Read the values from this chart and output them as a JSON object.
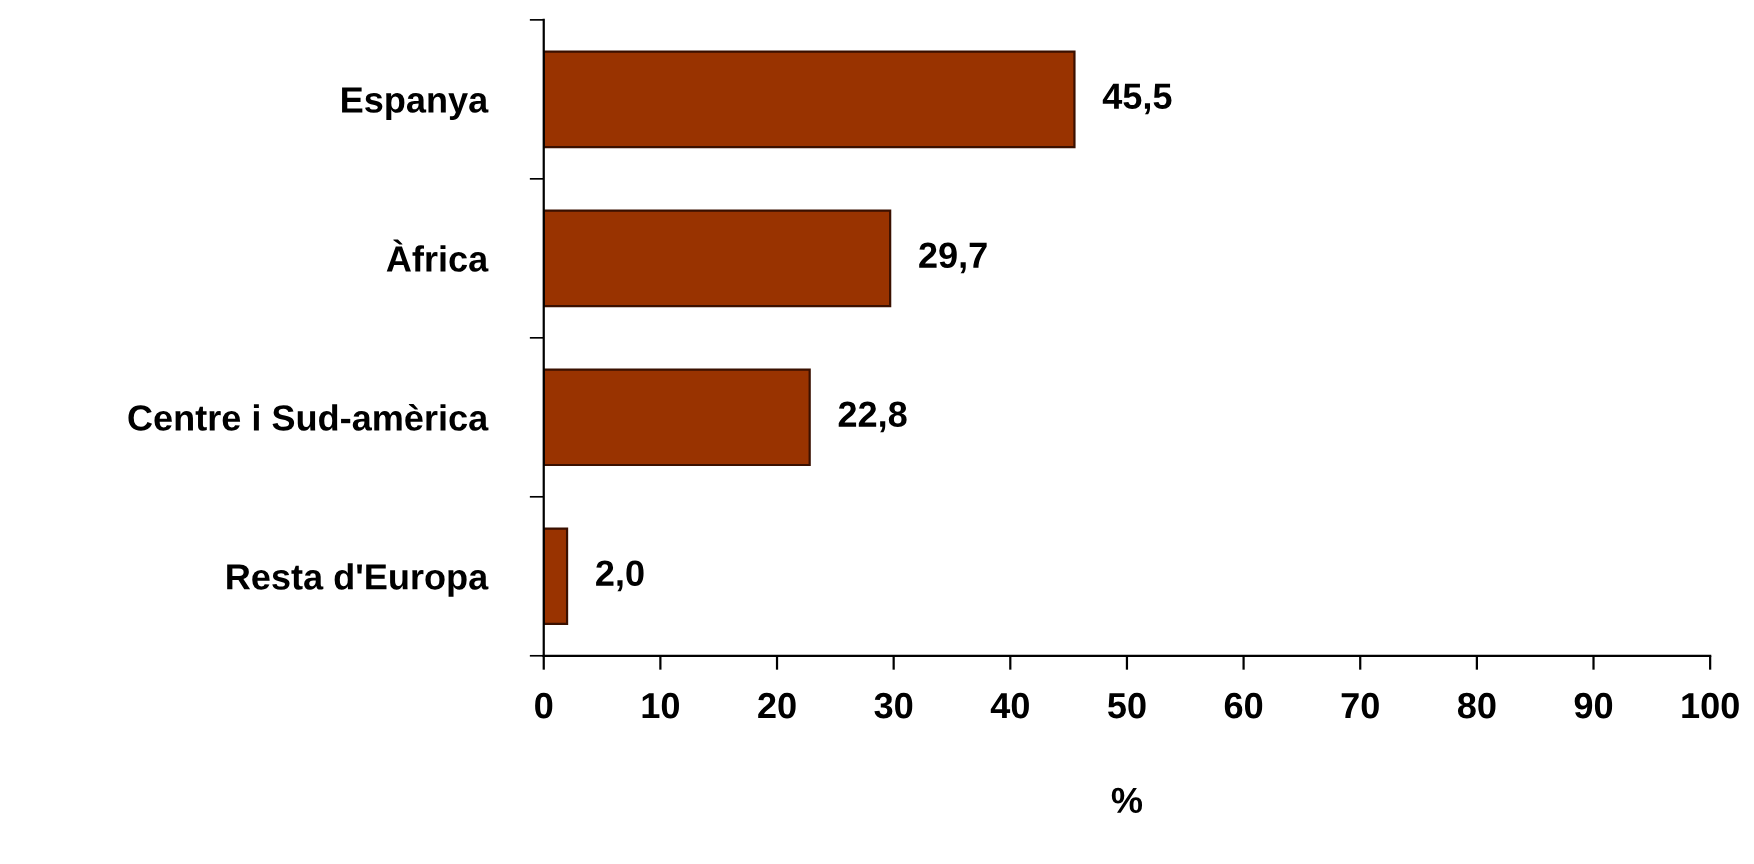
{
  "chart_data": {
    "type": "bar",
    "orientation": "horizontal",
    "categories": [
      "Espanya",
      "Àfrica",
      "Centre i Sud-amèrica",
      "Resta d'Europa"
    ],
    "values": [
      45.5,
      29.7,
      22.8,
      2.0
    ],
    "value_labels": [
      "45,5",
      "29,7",
      "22,8",
      "2,0"
    ],
    "color": "#993300",
    "xlabel": "%",
    "xlim": [
      0,
      100
    ],
    "xticks": [
      0,
      10,
      20,
      30,
      40,
      50,
      60,
      70,
      80,
      90,
      100
    ],
    "grid": false
  }
}
